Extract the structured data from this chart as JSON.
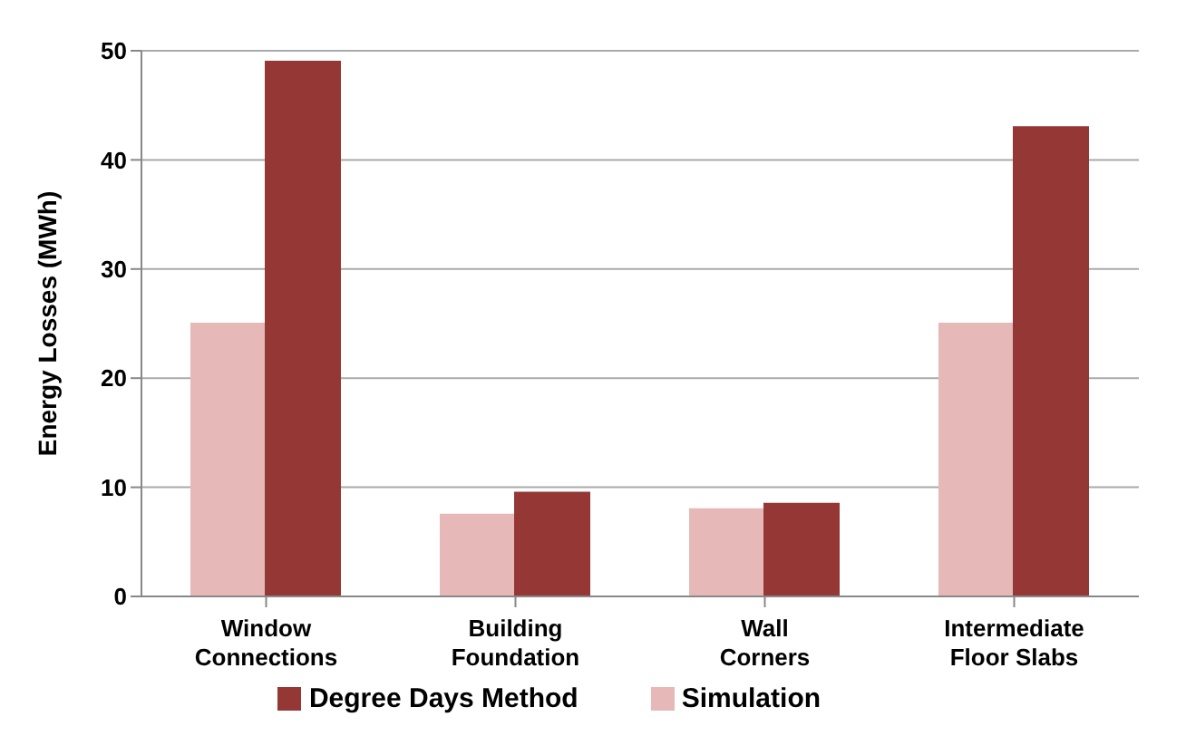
{
  "chart_data": {
    "type": "bar",
    "ylabel": "Energy Losses (MWh)",
    "categories": [
      "Window Connections",
      "Building Foundation",
      "Wall Corners",
      "Intermediate Floor Slabs"
    ],
    "series": [
      {
        "name": "Simulation",
        "color": "#e6b9b8",
        "values": [
          25,
          7.5,
          8,
          25
        ]
      },
      {
        "name": "Degree Days Method",
        "color": "#953735",
        "values": [
          49,
          9.5,
          8.5,
          43
        ]
      }
    ],
    "ylim": [
      0,
      50
    ],
    "yticks": [
      0,
      10,
      20,
      30,
      40,
      50
    ],
    "grid": "y",
    "legend": "bottom"
  }
}
